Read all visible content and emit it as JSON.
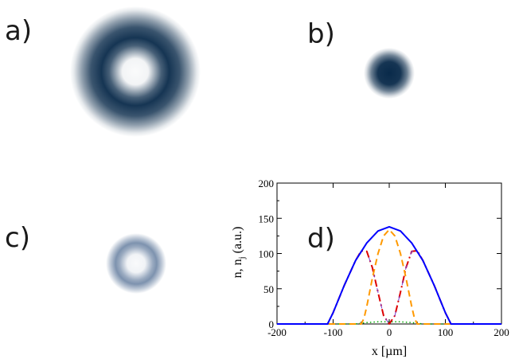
{
  "panels": {
    "a": {
      "label": "a)"
    },
    "b": {
      "label": "b)"
    },
    "c": {
      "label": "c)"
    },
    "d": {
      "label": "d)"
    }
  },
  "colors": {
    "blob_dark": "#092a4a",
    "blob_light": "#46648c",
    "total": "#0000ff",
    "component_outer": "#dd0000",
    "component_inner": "#ff9900",
    "component_minor": "#00aa00",
    "outer_dash_overlay": "#7a3ad0"
  },
  "chart_data": {
    "type": "line",
    "xlabel": "x [µm]",
    "ylabel_main": "n, n",
    "ylabel_sub": "j",
    "ylabel_tail": " (a.u.)",
    "xlim": [
      -200,
      200
    ],
    "ylim": [
      0,
      200
    ],
    "x_ticks": [
      -200,
      -100,
      0,
      100,
      200
    ],
    "y_ticks": [
      0,
      50,
      100,
      150,
      200
    ],
    "x_tick_labels": [
      "-200",
      "-100",
      "0",
      "100",
      "200"
    ],
    "y_tick_labels": [
      "0",
      "50",
      "100",
      "150",
      "200"
    ],
    "grid": false,
    "series": [
      {
        "key": "total",
        "style": "solid",
        "x": [
          -200,
          -110,
          -100,
          -80,
          -60,
          -40,
          -20,
          0,
          20,
          40,
          60,
          80,
          100,
          110,
          200
        ],
        "y": [
          0,
          0,
          16,
          55,
          90,
          115,
          132,
          138,
          132,
          115,
          90,
          55,
          16,
          0,
          0
        ]
      },
      {
        "key": "outer",
        "style": "dashdot",
        "x": [
          -200,
          -110,
          -100,
          -80,
          -60,
          -50,
          -40,
          -30,
          -20,
          -10,
          0,
          10,
          20,
          30,
          40,
          50,
          60,
          80,
          100,
          110,
          200
        ],
        "y": [
          0,
          0,
          16,
          55,
          90,
          104,
          103,
          80,
          45,
          12,
          0,
          12,
          45,
          80,
          103,
          104,
          90,
          55,
          16,
          0,
          0
        ]
      },
      {
        "key": "inner",
        "style": "dashed",
        "x": [
          -200,
          -50,
          -45,
          -40,
          -30,
          -20,
          -10,
          0,
          10,
          20,
          30,
          40,
          45,
          50,
          200
        ],
        "y": [
          0,
          0,
          8,
          25,
          65,
          100,
          125,
          134,
          125,
          100,
          65,
          25,
          8,
          0,
          0
        ]
      },
      {
        "key": "minor",
        "style": "dotted",
        "x": [
          -200,
          -60,
          -40,
          -20,
          0,
          20,
          40,
          60,
          200
        ],
        "y": [
          0,
          0,
          2,
          3,
          3,
          3,
          2,
          0,
          0
        ]
      }
    ]
  }
}
